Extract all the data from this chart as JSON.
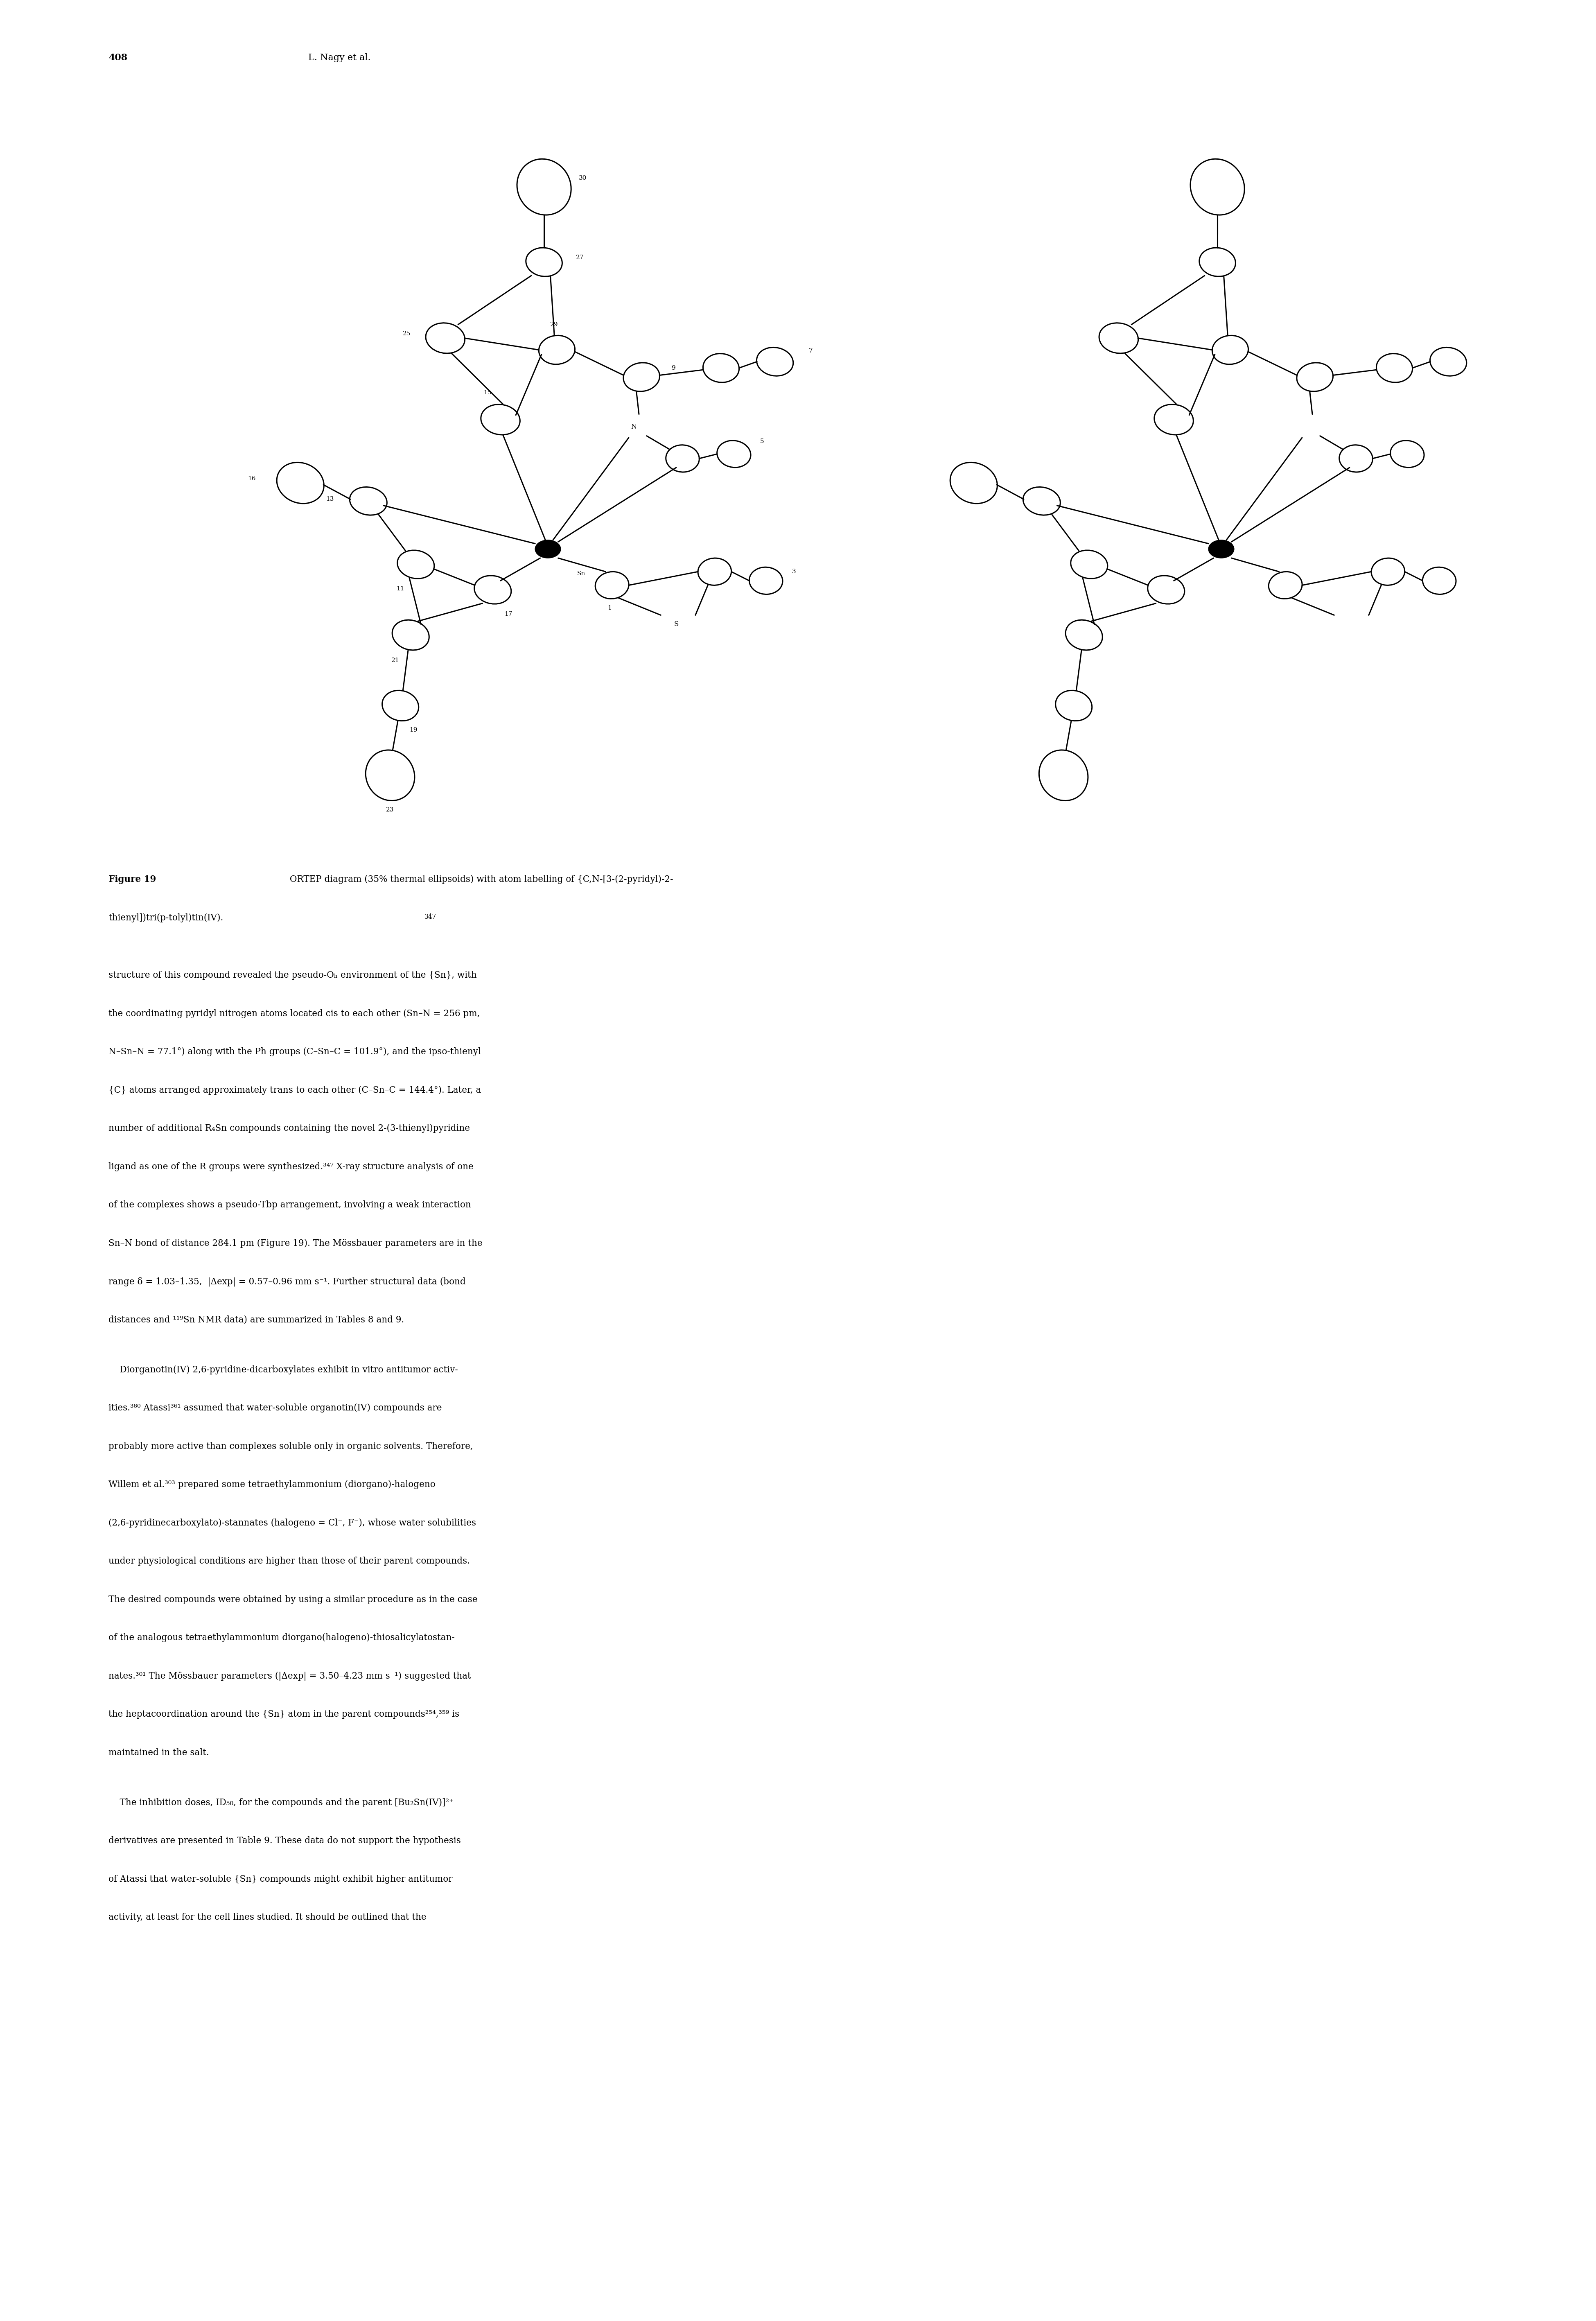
{
  "header_page": "408",
  "header_author": "L. Nagy et al.",
  "fig_caption_bold": "Figure 19",
  "fig_caption_text": "  ORTEP diagram (35% thermal ellipsoids) with atom labelling of {C,N-[3-(2-pyridyl)-2-",
  "fig_caption_line2": "thienyl])tri(p-tolyl)tin(IV).",
  "fig_caption_superscript": "347",
  "body_paragraph1": [
    "structure of this compound revealed the pseudo-O",
    " environment of the {Sn}, with",
    "the coordinating pyridyl nitrogen atoms located ",
    "cis",
    " to each other (Sn–N = 256 pm,",
    "N–Sn–N = 77.1°) along with the Ph groups (C–Sn–C = 101.9°), and the ",
    "ipso",
    "-thienyl",
    "{C} atoms arranged approximately ",
    "trans",
    " to each other (C–Sn–C = 144.4°). Later, a",
    "number of additional R₄Sn compounds containing the novel 2-(3-thienyl)pyridine",
    "ligand as one of the R groups were synthesized.",
    "347",
    " X-ray structure analysis of one",
    "of the complexes shows a ",
    "pseudo-Tbp",
    " arrangement, involving a weak interaction",
    "Sn–N bond of distance 284.1 pm (Figure 19). The Mössbauer parameters are in the",
    "range δ = 1.03–1.35,  |Δ",
    "exp",
    "| = 0.57–0.96 mm s⁻¹. Further structural data (bond",
    "distances and ¹¹⁹Sn NMR data) are summarized in Tables 8 and 9."
  ],
  "bg": "#ffffff",
  "fg": "#000000"
}
